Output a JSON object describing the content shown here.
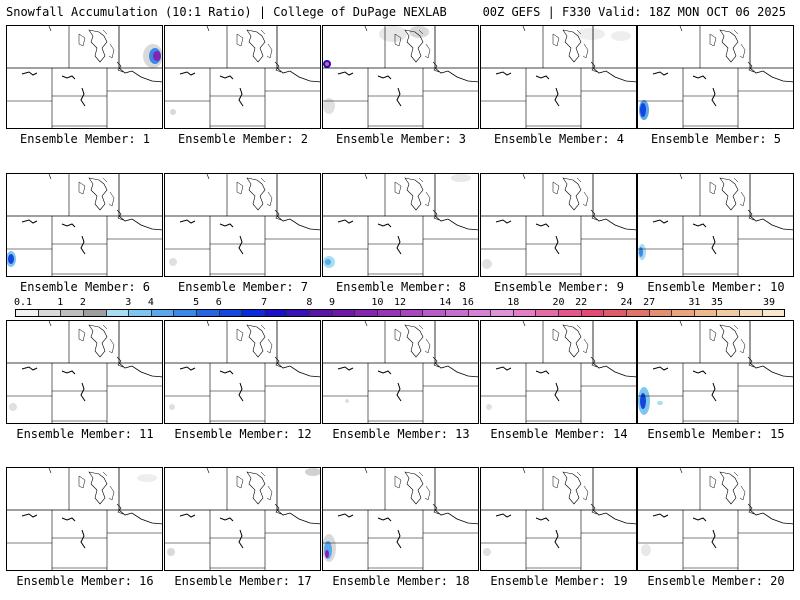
{
  "header": {
    "title_left": "Snowfall Accumulation (10:1 Ratio) | College of DuPage NEXLAB",
    "title_right": "00Z GEFS | F330 Valid: 18Z MON OCT 06 2025"
  },
  "colorbar": {
    "labels": [
      "0.1",
      "1",
      "2",
      "3",
      "4",
      "5",
      "6",
      "7",
      "8",
      "9",
      "10",
      "12",
      "14",
      "16",
      "18",
      "20",
      "22",
      "24",
      "27",
      "31",
      "35",
      "39"
    ],
    "colors": [
      "#f2f2f2",
      "#d9d9d9",
      "#bdbdbd",
      "#9e9e9e",
      "#a8dcf0",
      "#7fc6ee",
      "#5aa8ec",
      "#3a88e8",
      "#2566e4",
      "#1446e0",
      "#0a2adc",
      "#1a10c8",
      "#3a10b8",
      "#5a14a8",
      "#7018a8",
      "#8424b0",
      "#9634b8",
      "#a846c0",
      "#b85ac8",
      "#c66ed0",
      "#d482d6",
      "#de92d8",
      "#e47ec4",
      "#e46aa8",
      "#e4568c",
      "#e44874",
      "#e05a6a",
      "#e07468",
      "#e48e72",
      "#e8a480",
      "#ecb890",
      "#f0caa4",
      "#f4dab8",
      "#f8e8cc"
    ]
  },
  "panels": [
    {
      "label": "Ensemble Member: 1"
    },
    {
      "label": "Ensemble Member: 2"
    },
    {
      "label": "Ensemble Member: 3"
    },
    {
      "label": "Ensemble Member: 4"
    },
    {
      "label": "Ensemble Member: 5"
    },
    {
      "label": "Ensemble Member: 6"
    },
    {
      "label": "Ensemble Member: 7"
    },
    {
      "label": "Ensemble Member: 8"
    },
    {
      "label": "Ensemble Member: 9"
    },
    {
      "label": "Ensemble Member: 10"
    },
    {
      "label": "Ensemble Member: 11"
    },
    {
      "label": "Ensemble Member: 12"
    },
    {
      "label": "Ensemble Member: 13"
    },
    {
      "label": "Ensemble Member: 14"
    },
    {
      "label": "Ensemble Member: 15"
    },
    {
      "label": "Ensemble Member: 16"
    },
    {
      "label": "Ensemble Member: 17"
    },
    {
      "label": "Ensemble Member: 18"
    },
    {
      "label": "Ensemble Member: 19"
    },
    {
      "label": "Ensemble Member: 20"
    }
  ]
}
